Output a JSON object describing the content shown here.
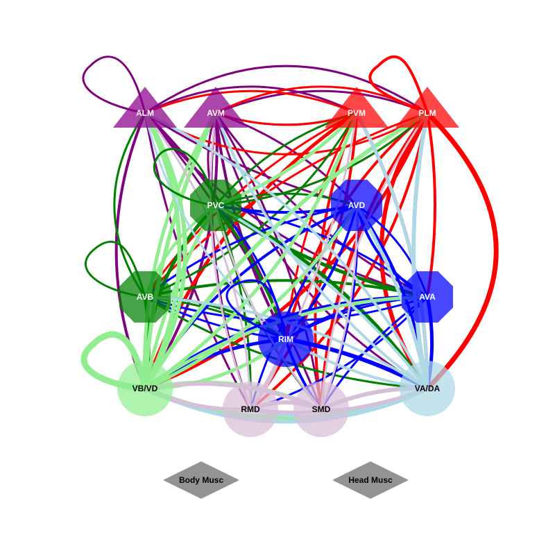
{
  "nodes": [
    {
      "id": "ALM",
      "label": "ALM",
      "shape": "triangle",
      "color": "#8b008b",
      "label_color": "#ffffff"
    },
    {
      "id": "AVM",
      "label": "AVM",
      "shape": "triangle",
      "color": "#8b008b",
      "label_color": "#ffffff"
    },
    {
      "id": "PVM",
      "label": "PVM",
      "shape": "triangle",
      "color": "#ff0000",
      "label_color": "#ffffff"
    },
    {
      "id": "PLM",
      "label": "PLM",
      "shape": "triangle",
      "color": "#ff0000",
      "label_color": "#ffffff"
    },
    {
      "id": "PVC",
      "label": "PVC",
      "shape": "octagon",
      "color": "#008000",
      "label_color": "#ffffff"
    },
    {
      "id": "AVD",
      "label": "AVD",
      "shape": "octagon",
      "color": "#0000ff",
      "label_color": "#ffffff"
    },
    {
      "id": "AVB",
      "label": "AVB",
      "shape": "octagon",
      "color": "#008000",
      "label_color": "#ffffff"
    },
    {
      "id": "AVA",
      "label": "AVA",
      "shape": "octagon",
      "color": "#0000ff",
      "label_color": "#ffffff"
    },
    {
      "id": "RIM",
      "label": "RIM",
      "shape": "circle",
      "color": "#0000ff",
      "label_color": "#ffffff"
    },
    {
      "id": "VBVD",
      "label": "VB/VD",
      "shape": "circle",
      "color": "#90ee90",
      "label_color": "#000000"
    },
    {
      "id": "VADA",
      "label": "VA/DA",
      "shape": "circle",
      "color": "#add8e6",
      "label_color": "#000000"
    },
    {
      "id": "RMD",
      "label": "RMD",
      "shape": "circle",
      "color": "#d8bfd8",
      "label_color": "#000000"
    },
    {
      "id": "SMD",
      "label": "SMD",
      "shape": "circle",
      "color": "#d8bfd8",
      "label_color": "#000000"
    },
    {
      "id": "BODY",
      "label": "Body Musc",
      "shape": "diamond",
      "color": "#808080",
      "label_color": "#000000"
    },
    {
      "id": "HEAD",
      "label": "Head Musc",
      "shape": "diamond",
      "color": "#808080",
      "label_color": "#000000"
    }
  ],
  "colors": {
    "purple": "#800080",
    "red": "#ff0000",
    "green": "#008000",
    "blue": "#0000ff",
    "lightgreen": "#90ee90",
    "lightblue": "#add8e6",
    "thistle": "#d8bfd8"
  }
}
